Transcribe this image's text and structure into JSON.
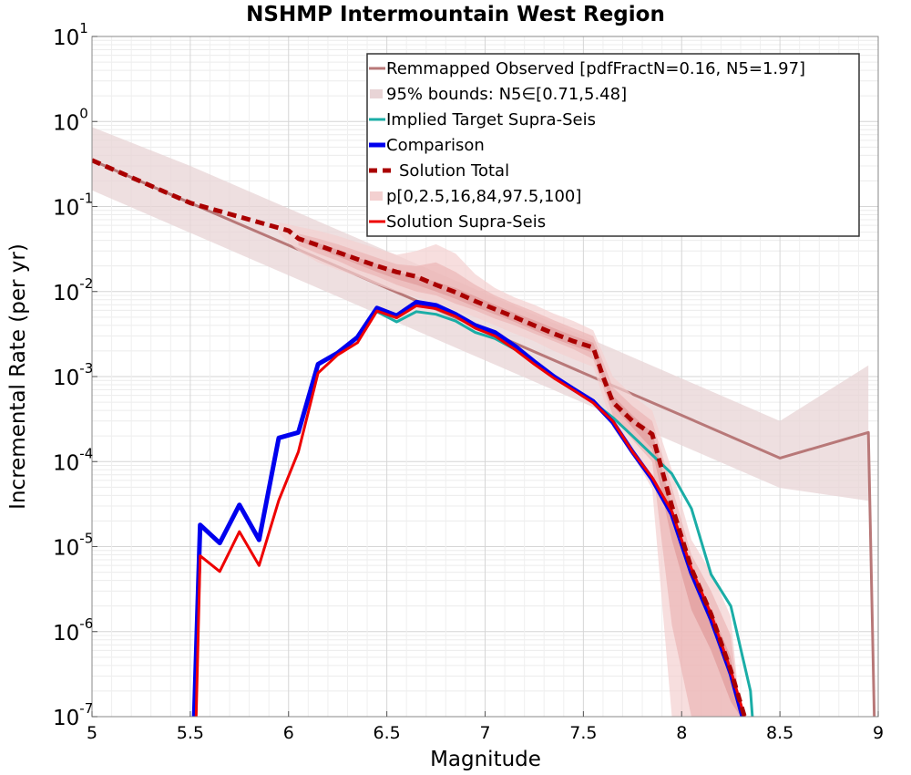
{
  "chart_data": {
    "type": "line",
    "title": "NSHMP Intermountain West Region",
    "xlabel": "Magnitude",
    "ylabel": "Incremental Rate (per yr)",
    "xlim": [
      5,
      9
    ],
    "ylim": [
      1e-07,
      10
    ],
    "yscale": "log",
    "grid": true,
    "legend_position": "top-right",
    "x_ticks": [
      5,
      5.5,
      6,
      6.5,
      7,
      7.5,
      8,
      8.5,
      9
    ],
    "x_tick_labels": [
      "5",
      "5.5",
      "6",
      "6.5",
      "7",
      "7.5",
      "8",
      "8.5",
      "9"
    ],
    "y_ticks": [
      {
        "value": 1e-07,
        "base": "10",
        "exp": "-7"
      },
      {
        "value": 1e-06,
        "base": "10",
        "exp": "-6"
      },
      {
        "value": 1e-05,
        "base": "10",
        "exp": "-5"
      },
      {
        "value": 0.0001,
        "base": "10",
        "exp": "-4"
      },
      {
        "value": 0.001,
        "base": "10",
        "exp": "-3"
      },
      {
        "value": 0.01,
        "base": "10",
        "exp": "-2"
      },
      {
        "value": 0.1,
        "base": "10",
        "exp": "-1"
      },
      {
        "value": 1,
        "base": "10",
        "exp": "0"
      },
      {
        "value": 10,
        "base": "10",
        "exp": "1"
      }
    ],
    "colors": {
      "observed": "#b87878",
      "observed_band": "#e8d4d6",
      "implied_target": "#1aada6",
      "comparison": "#0000ee",
      "solution_total": "#aa0000",
      "percentile_band_outer": "#f3d0d0",
      "percentile_band_mid": "#e9acac",
      "percentile_band_inner": "#dd9090",
      "solution_supra": "#ee0000"
    },
    "legend": [
      {
        "key": "observed",
        "label": "Remmapped Observed [pdfFractN=0.16, N5=1.97]",
        "style": "line"
      },
      {
        "key": "observed_band",
        "label": "95% bounds: N5∈[0.71,5.48]",
        "style": "band"
      },
      {
        "key": "implied_target",
        "label": "Implied Target Supra-Seis",
        "style": "line"
      },
      {
        "key": "comparison",
        "label": "Comparison",
        "style": "thick"
      },
      {
        "key": "solution_total",
        "label": "Solution Total",
        "style": "dashed"
      },
      {
        "key": "percentile_band",
        "label": "p[0,2.5,16,84,97.5,100]",
        "style": "band"
      },
      {
        "key": "solution_supra",
        "label": "Solution Supra-Seis",
        "style": "line"
      }
    ],
    "series": [
      {
        "key": "observed_band",
        "type": "band",
        "x": [
          5,
          5.5,
          6,
          6.5,
          7,
          7.5,
          8,
          8.5,
          8.95
        ],
        "lower": [
          0.155,
          0.049,
          0.0155,
          0.0049,
          0.00155,
          0.00049,
          0.000155,
          4.9e-05,
          3.45e-05
        ],
        "upper": [
          0.86,
          0.3,
          0.095,
          0.03,
          0.0095,
          0.003,
          0.00095,
          0.0003,
          0.00135
        ]
      },
      {
        "key": "observed",
        "type": "line",
        "x": [
          5,
          5.5,
          6,
          6.5,
          7,
          7.5,
          8,
          8.5,
          8.95,
          8.98
        ],
        "y": [
          0.35,
          0.11,
          0.035,
          0.011,
          0.0035,
          0.0011,
          0.00035,
          0.00011,
          0.00022,
          1e-07
        ]
      },
      {
        "key": "percentile_band_outer",
        "type": "band",
        "x": [
          5.95,
          6.05,
          6.15,
          6.25,
          6.35,
          6.45,
          6.55,
          6.65,
          6.75,
          6.85,
          6.95,
          7.05,
          7.15,
          7.25,
          7.35,
          7.45,
          7.55,
          7.65,
          7.75,
          7.85,
          7.95,
          8.05,
          8.15,
          8.25,
          8.3
        ],
        "lower": [
          0.048,
          0.03,
          0.022,
          0.018,
          0.015,
          0.012,
          0.01,
          0.0085,
          0.0075,
          0.006,
          0.005,
          0.004,
          0.0032,
          0.0026,
          0.002,
          0.0016,
          0.0013,
          0.00025,
          0.00012,
          4.8e-05,
          1e-07,
          1e-07,
          1e-07,
          1e-07,
          1e-07
        ],
        "upper": [
          0.065,
          0.058,
          0.052,
          0.045,
          0.038,
          0.032,
          0.027,
          0.03,
          0.036,
          0.028,
          0.016,
          0.011,
          0.0085,
          0.007,
          0.0055,
          0.0045,
          0.0035,
          0.001,
          0.0006,
          0.0004,
          8e-05,
          1.2e-05,
          5e-06,
          1.5e-06,
          1e-07
        ]
      },
      {
        "key": "percentile_band_mid",
        "type": "band",
        "x": [
          6.05,
          6.15,
          6.25,
          6.35,
          6.45,
          6.55,
          6.65,
          6.75,
          6.85,
          6.95,
          7.05,
          7.15,
          7.25,
          7.35,
          7.45,
          7.55,
          7.65,
          7.75,
          7.85,
          7.95,
          8.05,
          8.15,
          8.25,
          8.3
        ],
        "lower": [
          0.035,
          0.028,
          0.023,
          0.018,
          0.015,
          0.012,
          0.01,
          0.009,
          0.0072,
          0.006,
          0.0048,
          0.004,
          0.0032,
          0.0026,
          0.0021,
          0.0016,
          0.00035,
          0.00018,
          0.0001,
          1.2e-06,
          1e-07,
          1e-07,
          1e-07,
          1e-07
        ],
        "upper": [
          0.048,
          0.042,
          0.036,
          0.03,
          0.025,
          0.021,
          0.02,
          0.022,
          0.017,
          0.012,
          0.009,
          0.0072,
          0.0058,
          0.0046,
          0.0037,
          0.003,
          0.00075,
          0.00045,
          0.0003,
          5e-05,
          8e-06,
          3e-06,
          9e-07,
          1e-07
        ]
      },
      {
        "key": "percentile_band_inner",
        "type": "band",
        "x": [
          6.05,
          6.15,
          6.25,
          6.35,
          6.45,
          6.55,
          6.65,
          6.75,
          6.85,
          6.95,
          7.05,
          7.15,
          7.25,
          7.35,
          7.45,
          7.55,
          7.65,
          7.75,
          7.85,
          7.95,
          8.05,
          8.15,
          8.25,
          8.3
        ],
        "lower": [
          0.04,
          0.032,
          0.026,
          0.021,
          0.017,
          0.014,
          0.012,
          0.01,
          0.0082,
          0.0066,
          0.0054,
          0.0044,
          0.0035,
          0.0028,
          0.0023,
          0.0019,
          0.00045,
          0.00025,
          0.00014,
          1.2e-05,
          1.8e-06,
          6e-07,
          1.5e-07,
          1e-07
        ],
        "upper": [
          0.044,
          0.037,
          0.031,
          0.025,
          0.021,
          0.017,
          0.015,
          0.013,
          0.011,
          0.0088,
          0.007,
          0.0056,
          0.0046,
          0.0037,
          0.003,
          0.0025,
          0.0006,
          0.00035,
          0.00022,
          3e-05,
          5e-06,
          1.8e-06,
          5e-07,
          1e-07
        ]
      },
      {
        "key": "implied_target",
        "type": "line",
        "x": [
          6.45,
          6.55,
          6.65,
          6.75,
          6.85,
          6.95,
          7.05,
          7.15,
          7.25,
          7.35,
          7.45,
          7.55,
          7.65,
          7.75,
          7.85,
          7.95,
          8.05,
          8.15,
          8.25,
          8.35,
          8.36
        ],
        "y": [
          0.0058,
          0.0044,
          0.0058,
          0.0054,
          0.0045,
          0.0033,
          0.0028,
          0.0021,
          0.0015,
          0.001,
          0.00072,
          0.0005,
          0.00033,
          0.0002,
          0.00012,
          7.2e-05,
          2.8e-05,
          4.7e-06,
          2e-06,
          2e-07,
          1e-07
        ]
      },
      {
        "key": "comparison",
        "type": "line",
        "x": [
          5.52,
          5.55,
          5.65,
          5.75,
          5.85,
          5.95,
          6.05,
          6.15,
          6.25,
          6.35,
          6.45,
          6.55,
          6.65,
          6.75,
          6.85,
          6.95,
          7.05,
          7.15,
          7.25,
          7.35,
          7.45,
          7.55,
          7.65,
          7.75,
          7.85,
          7.95,
          8.05,
          8.15,
          8.25,
          8.31
        ],
        "y": [
          1e-07,
          1.8e-05,
          1.1e-05,
          3.1e-05,
          1.2e-05,
          0.00019,
          0.00022,
          0.0014,
          0.0019,
          0.0029,
          0.0064,
          0.0052,
          0.0075,
          0.0069,
          0.0054,
          0.004,
          0.0033,
          0.0023,
          0.0015,
          0.001,
          0.00071,
          0.00051,
          0.00029,
          0.00013,
          6.2e-05,
          2.4e-05,
          4.9e-06,
          1.4e-06,
          3.2e-07,
          1e-07
        ]
      },
      {
        "key": "solution_supra",
        "type": "line",
        "x": [
          5.53,
          5.55,
          5.65,
          5.75,
          5.85,
          5.95,
          6.05,
          6.15,
          6.25,
          6.35,
          6.45,
          6.55,
          6.65,
          6.75,
          6.85,
          6.95,
          7.05,
          7.15,
          7.25,
          7.35,
          7.45,
          7.55,
          7.65,
          7.75,
          7.85,
          7.95,
          8.05,
          8.15,
          8.25,
          8.32
        ],
        "y": [
          1e-07,
          7.8e-06,
          5.1e-06,
          1.5e-05,
          6e-06,
          3.5e-05,
          0.00013,
          0.0011,
          0.0018,
          0.0025,
          0.0059,
          0.0049,
          0.0068,
          0.0063,
          0.0051,
          0.0037,
          0.003,
          0.0021,
          0.0014,
          0.00096,
          0.00069,
          0.00049,
          0.0003,
          0.00013,
          6.5e-05,
          2.6e-05,
          5.5e-06,
          1.6e-06,
          3.5e-07,
          1e-07
        ]
      },
      {
        "key": "solution_total",
        "type": "line",
        "x": [
          5,
          5.5,
          6,
          6.05,
          6.15,
          6.25,
          6.35,
          6.45,
          6.55,
          6.65,
          6.75,
          6.85,
          6.95,
          7.05,
          7.15,
          7.25,
          7.35,
          7.45,
          7.55,
          7.6,
          7.65,
          7.75,
          7.85,
          7.95,
          8.05,
          8.15,
          8.25,
          8.32
        ],
        "y": [
          0.35,
          0.11,
          0.052,
          0.042,
          0.035,
          0.029,
          0.024,
          0.02,
          0.017,
          0.015,
          0.012,
          0.0098,
          0.0077,
          0.0062,
          0.005,
          0.004,
          0.0032,
          0.0026,
          0.0022,
          0.001,
          0.0005,
          0.0003,
          0.00021,
          3e-05,
          5.5e-06,
          1.6e-06,
          3.5e-07,
          1e-07
        ]
      }
    ]
  }
}
